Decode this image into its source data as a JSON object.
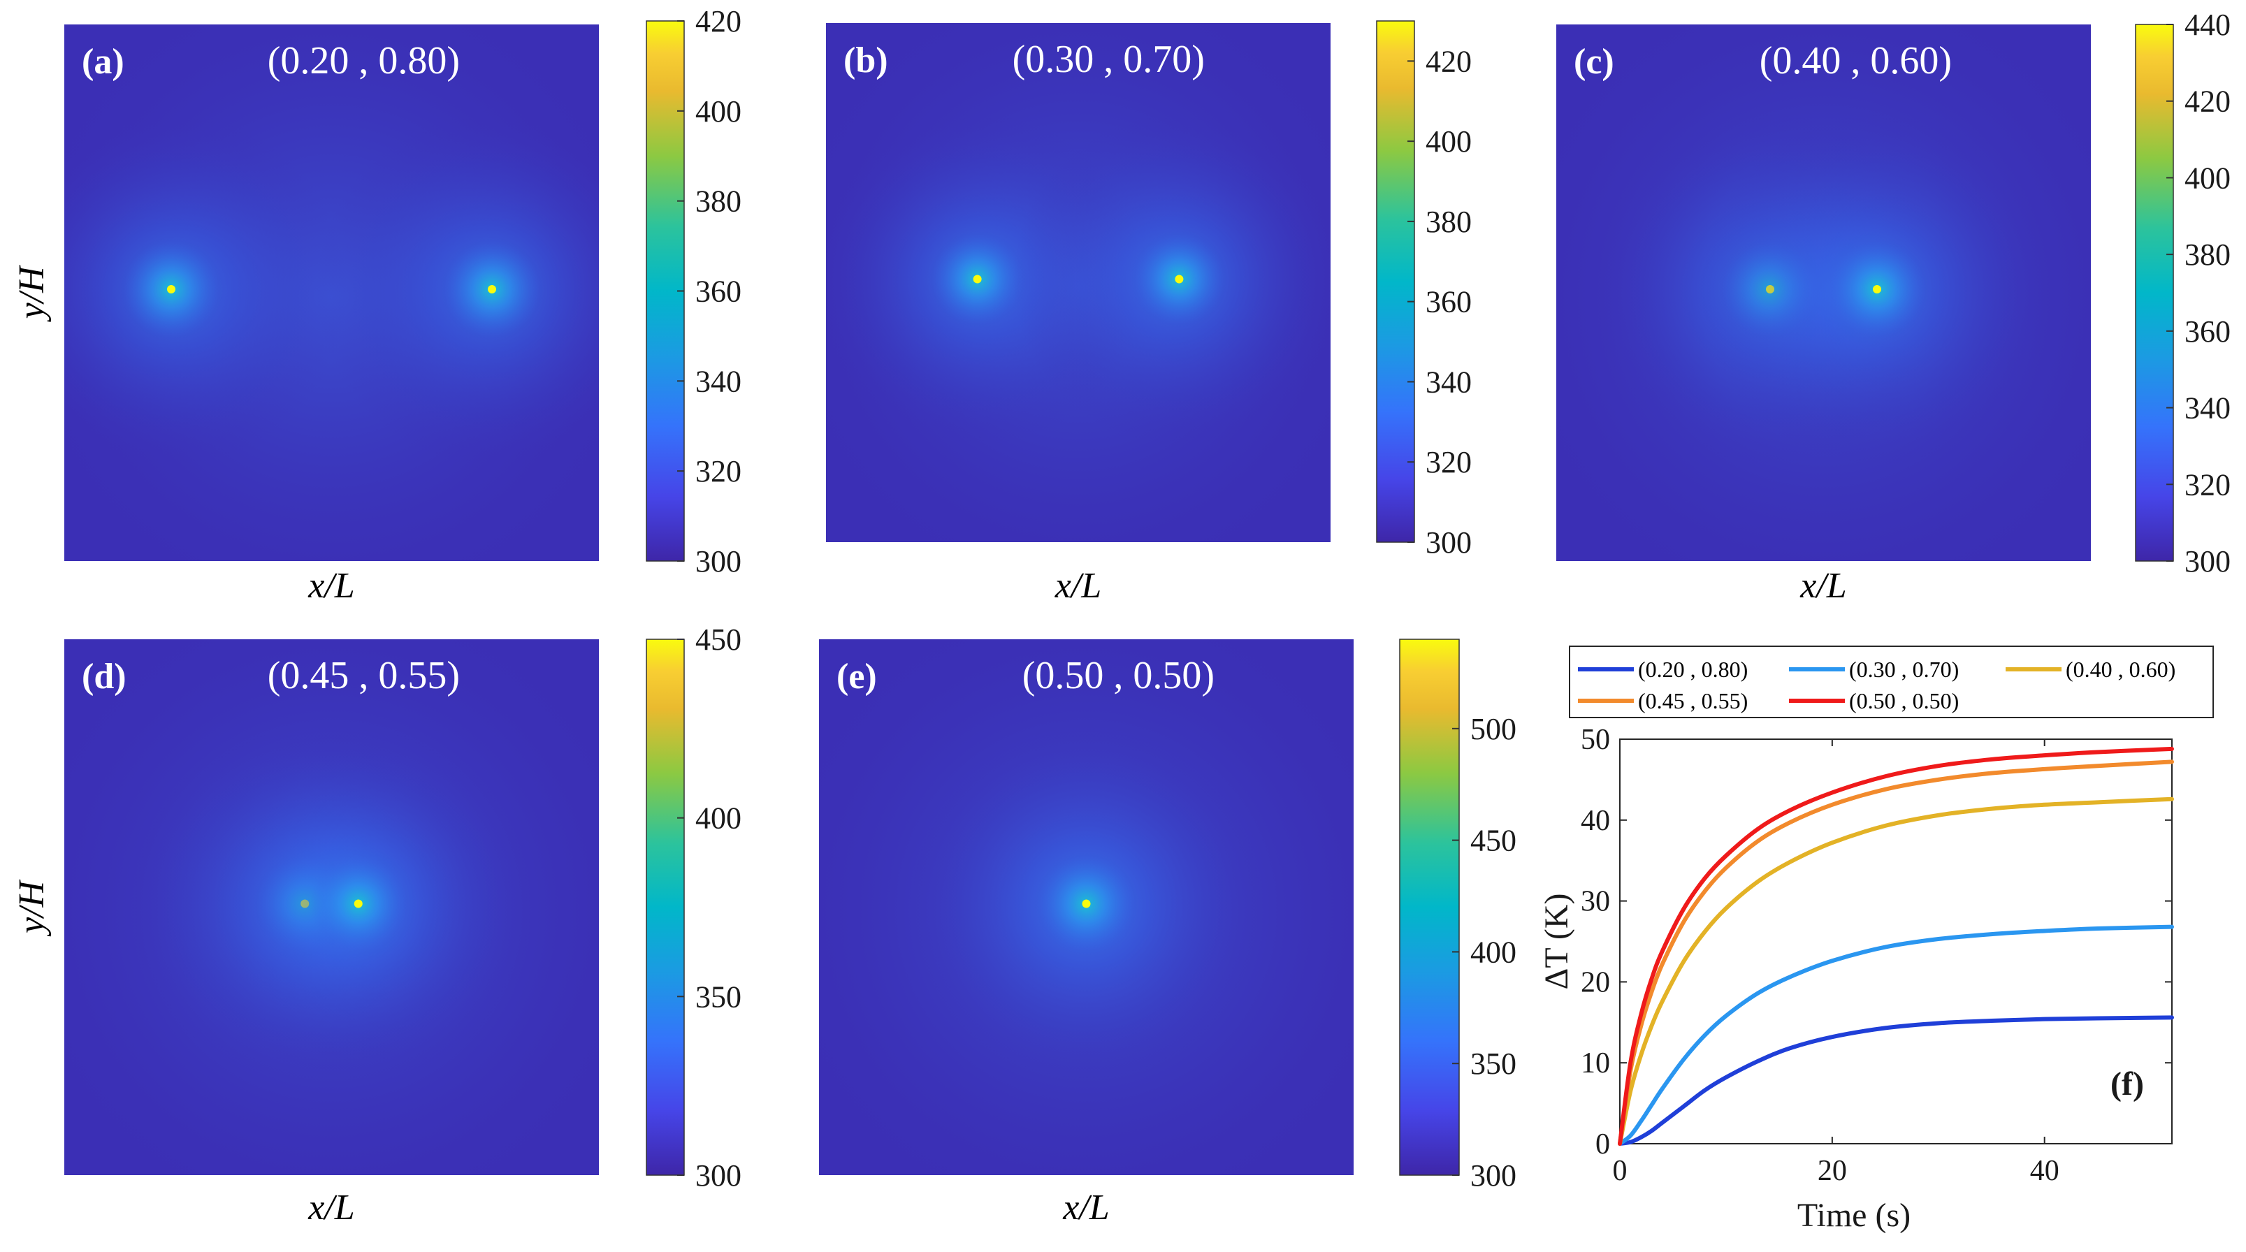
{
  "colors": {
    "background_field": "#3b2fb5",
    "hot_spot": "#f9fb0e",
    "series": [
      "#1f3fd8",
      "#2a96f0",
      "#e3b226",
      "#f28a2c",
      "#ef1a1a"
    ]
  },
  "chart_data": [
    {
      "type": "heatmap",
      "panel": "(a)",
      "title": "(0.20 , 0.80)",
      "xlabel": "x/L",
      "ylabel": "y/H",
      "colorbar": {
        "min": 300,
        "max": 420,
        "ticks": [
          "300",
          "320",
          "340",
          "360",
          "380",
          "400",
          "420"
        ]
      },
      "hot_spots_x": [
        0.2,
        0.8
      ],
      "hot_spot_y": 0.5
    },
    {
      "type": "heatmap",
      "panel": "(b)",
      "title": "(0.30 , 0.70)",
      "xlabel": "x/L",
      "ylabel": "",
      "colorbar": {
        "min": 300,
        "max": 430,
        "ticks": [
          "300",
          "320",
          "340",
          "360",
          "380",
          "400",
          "420"
        ]
      },
      "hot_spots_x": [
        0.3,
        0.7
      ],
      "hot_spot_y": 0.5
    },
    {
      "type": "heatmap",
      "panel": "(c)",
      "title": "(0.40 , 0.60)",
      "xlabel": "x/L",
      "ylabel": "",
      "colorbar": {
        "min": 300,
        "max": 440,
        "ticks": [
          "300",
          "320",
          "340",
          "360",
          "380",
          "400",
          "420",
          "440"
        ]
      },
      "hot_spots_x": [
        0.4,
        0.6
      ],
      "hot_spot_y": 0.5
    },
    {
      "type": "heatmap",
      "panel": "(d)",
      "title": "(0.45 , 0.55)",
      "xlabel": "x/L",
      "ylabel": "y/H",
      "colorbar": {
        "min": 300,
        "max": 450,
        "ticks": [
          "300",
          "350",
          "400",
          "450"
        ]
      },
      "hot_spots_x": [
        0.45,
        0.55
      ],
      "hot_spot_y": 0.5
    },
    {
      "type": "heatmap",
      "panel": "(e)",
      "title": "(0.50 , 0.50)",
      "xlabel": "x/L",
      "ylabel": "",
      "colorbar": {
        "min": 300,
        "max": 540,
        "ticks": [
          "300",
          "350",
          "400",
          "450",
          "500"
        ]
      },
      "hot_spots_x": [
        0.5
      ],
      "hot_spot_y": 0.5
    },
    {
      "type": "line",
      "panel": "(f)",
      "xlabel": "Time (s)",
      "ylabel": "ΔT (K)",
      "xlim": [
        0,
        52
      ],
      "ylim": [
        0,
        50
      ],
      "xticks": [
        "0",
        "20",
        "40"
      ],
      "yticks": [
        "0",
        "10",
        "20",
        "30",
        "40",
        "50"
      ],
      "x": [
        0,
        1,
        2,
        3,
        4,
        6,
        8,
        10,
        13,
        16,
        20,
        25,
        30,
        35,
        40,
        45,
        52
      ],
      "series": [
        {
          "name": "(0.20 , 0.80)",
          "values": [
            0,
            0.2,
            0.8,
            1.6,
            2.6,
            4.6,
            6.6,
            8.2,
            10.2,
            11.8,
            13.2,
            14.3,
            14.9,
            15.2,
            15.4,
            15.5,
            15.6
          ]
        },
        {
          "name": "(0.30 , 0.70)",
          "values": [
            0,
            1.0,
            2.8,
            4.8,
            6.8,
            10.4,
            13.4,
            15.8,
            18.6,
            20.6,
            22.6,
            24.3,
            25.3,
            25.9,
            26.3,
            26.6,
            26.8
          ]
        },
        {
          "name": "(0.40 , 0.60)",
          "values": [
            0,
            6.5,
            11.0,
            14.6,
            17.6,
            22.5,
            26.2,
            29.1,
            32.4,
            34.8,
            37.2,
            39.3,
            40.6,
            41.4,
            41.9,
            42.2,
            42.6
          ]
        },
        {
          "name": "(0.45 , 0.55)",
          "values": [
            0,
            9.0,
            14.6,
            18.8,
            22.2,
            27.4,
            31.2,
            34.1,
            37.4,
            39.7,
            41.9,
            43.8,
            45.0,
            45.8,
            46.3,
            46.7,
            47.2
          ]
        },
        {
          "name": "(0.50 , 0.50)",
          "values": [
            0,
            10.0,
            16.0,
            20.4,
            23.8,
            29.0,
            32.8,
            35.6,
            38.9,
            41.2,
            43.4,
            45.4,
            46.7,
            47.5,
            48.0,
            48.4,
            48.8
          ]
        }
      ]
    }
  ]
}
